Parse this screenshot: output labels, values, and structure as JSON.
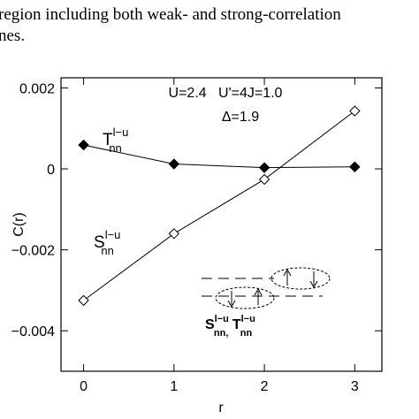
{
  "header_lines": [
    "region including both weak- and strong-correlation",
    "nes."
  ],
  "chart_data": {
    "type": "line",
    "x": [
      0,
      1,
      2,
      3
    ],
    "xlabel": "r",
    "ylabel": "C(r)",
    "xlim": [
      -0.25,
      3.3
    ],
    "ylim": [
      -0.005,
      0.00225
    ],
    "xticks": [
      0,
      1,
      2,
      3
    ],
    "yticks": [
      {
        "value": -0.004,
        "label": "−0.004"
      },
      {
        "value": -0.002,
        "label": "−0.002"
      },
      0,
      0.002
    ],
    "series": [
      {
        "name": "T",
        "name_sup": "l−u",
        "name_sub": "nn",
        "color": "#000000",
        "marker": "filled-diamond",
        "values": [
          0.00059,
          0.00012,
          3e-05,
          5e-05
        ]
      },
      {
        "name": "S",
        "name_sup": "l−u",
        "name_sub": "nn",
        "color": "#000000",
        "marker": "open-diamond",
        "values": [
          -0.00325,
          -0.0016,
          -0.00026,
          0.00143
        ]
      }
    ],
    "annotations": [
      "U=2.4   U'=4J=1.0",
      "Δ=1.9"
    ],
    "inset_label": [
      {
        "text": "S",
        "sup": "l−u",
        "sub": "nn,"
      },
      {
        "text": " T",
        "sup": "l−u",
        "sub": "nn"
      }
    ]
  }
}
